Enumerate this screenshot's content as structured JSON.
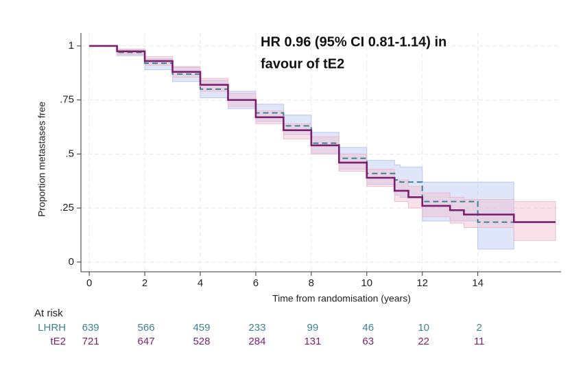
{
  "chart_data": {
    "type": "step",
    "annotation": [
      "HR 0.96 (95% CI 0.81-1.14) in",
      "favour of tE2"
    ],
    "ylabel": "Proportion metastases free",
    "xlabel": "Time from randomisation (years)",
    "xlim": [
      -0.3,
      17
    ],
    "ylim": [
      -0.045,
      1.06
    ],
    "xticks": [
      0,
      2,
      4,
      6,
      8,
      10,
      12,
      14
    ],
    "yticks": [
      0,
      {
        "value": 0.25,
        "label": ".25"
      },
      {
        "value": 0.5,
        "label": ".5"
      },
      {
        "value": 0.75,
        "label": ".75"
      },
      1
    ],
    "grid": true,
    "series": [
      {
        "name": "LHRH",
        "color": "#3d8290",
        "band_color": "#b9c8f2",
        "dashed": true,
        "x": [
          0,
          1,
          2,
          3,
          4,
          5,
          6,
          7,
          8,
          9,
          10,
          11,
          11.2,
          12,
          14,
          15.3
        ],
        "values": [
          1,
          0.97,
          0.92,
          0.87,
          0.8,
          0.75,
          0.69,
          0.63,
          0.55,
          0.48,
          0.41,
          0.38,
          0.37,
          0.28,
          0.185,
          0.185
        ],
        "lower": [
          1,
          0.955,
          0.89,
          0.835,
          0.76,
          0.71,
          0.65,
          0.59,
          0.5,
          0.43,
          0.36,
          0.31,
          0.3,
          0.19,
          0.06,
          0.06
        ],
        "upper": [
          1,
          0.985,
          0.94,
          0.9,
          0.84,
          0.79,
          0.73,
          0.68,
          0.6,
          0.53,
          0.47,
          0.45,
          0.44,
          0.37,
          0.37,
          0.37
        ]
      },
      {
        "name": "tE2",
        "color": "#7a1f6e",
        "band_color": "#efbccb",
        "dashed": false,
        "x": [
          0,
          1,
          2,
          3,
          4,
          5,
          6,
          7,
          8,
          9,
          10,
          11,
          11.5,
          12,
          13,
          13.5,
          15.3,
          16.8
        ],
        "values": [
          1,
          0.975,
          0.93,
          0.88,
          0.82,
          0.75,
          0.67,
          0.61,
          0.54,
          0.46,
          0.39,
          0.33,
          0.3,
          0.26,
          0.24,
          0.22,
          0.185,
          0.185
        ],
        "lower": [
          1,
          0.96,
          0.91,
          0.855,
          0.79,
          0.72,
          0.64,
          0.57,
          0.5,
          0.42,
          0.35,
          0.28,
          0.25,
          0.21,
          0.18,
          0.16,
          0.1,
          0.1
        ],
        "upper": [
          1,
          0.985,
          0.95,
          0.905,
          0.85,
          0.78,
          0.7,
          0.64,
          0.58,
          0.5,
          0.43,
          0.38,
          0.35,
          0.32,
          0.3,
          0.29,
          0.28,
          0.28
        ]
      }
    ],
    "at_risk": {
      "title": "At risk",
      "times": [
        0,
        2,
        4,
        6,
        8,
        10,
        12,
        14
      ],
      "rows": [
        {
          "name": "LHRH",
          "color": "#3d8290",
          "values": [
            639,
            566,
            459,
            233,
            99,
            46,
            10,
            2
          ]
        },
        {
          "name": "tE2",
          "color": "#7a1f6e",
          "values": [
            721,
            647,
            528,
            284,
            131,
            63,
            22,
            11
          ]
        }
      ]
    }
  }
}
